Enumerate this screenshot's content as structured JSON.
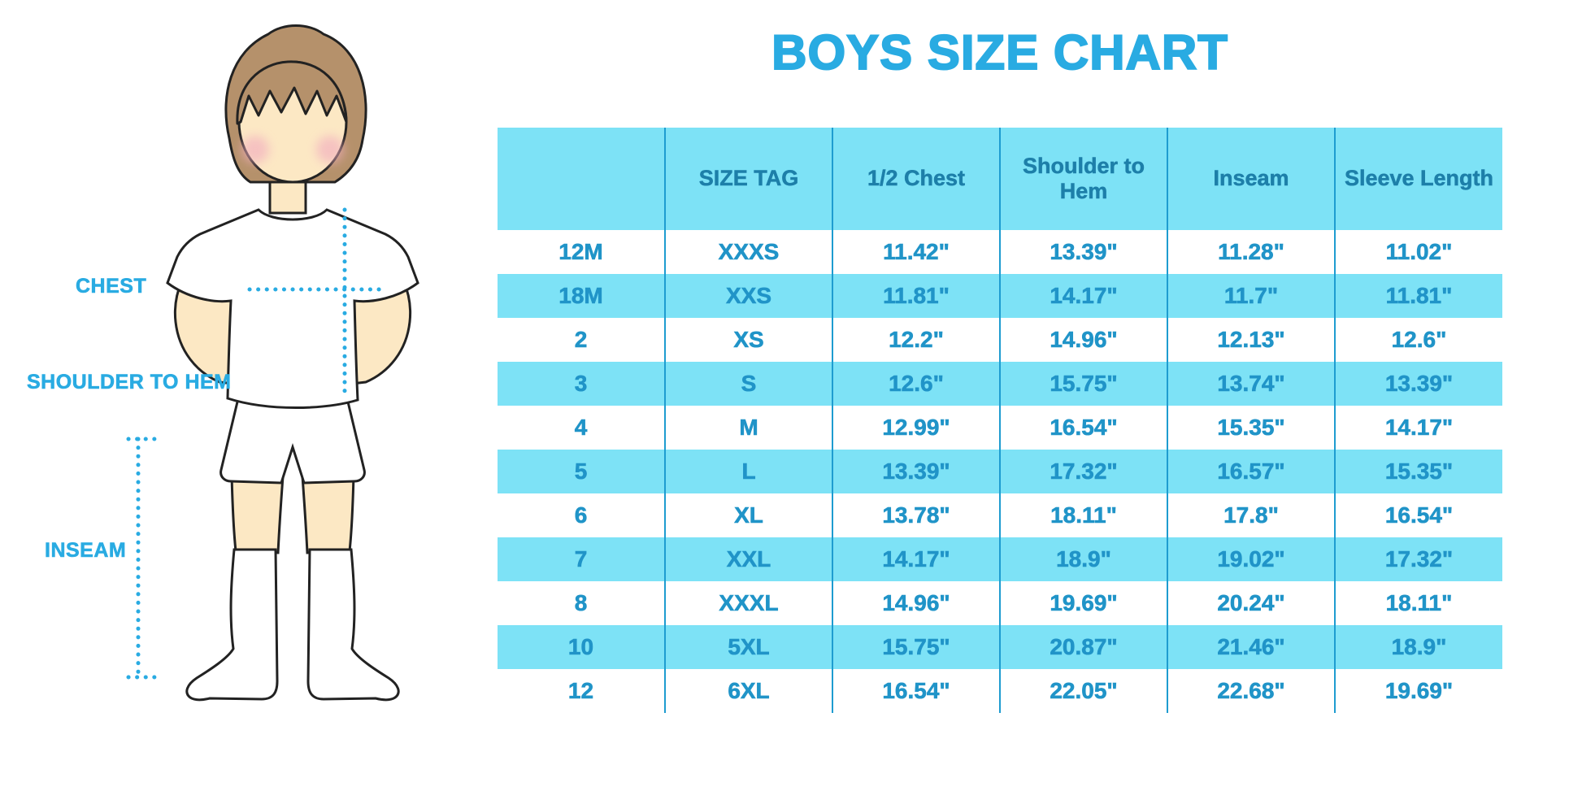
{
  "title": "BOYS SIZE CHART",
  "colors": {
    "accent_blue": "#29abe2",
    "row_highlight": "#7de2f6",
    "table_text": "#2094c8",
    "header_text": "#1d7fa9",
    "grid_line": "#1e9cd0",
    "skin": "#fce8c4",
    "hair": "#b5916b",
    "cheek": "#f2aebf"
  },
  "figure": {
    "labels": {
      "chest": "CHEST",
      "shoulder_to_hem": "SHOULDER TO HEM",
      "inseam": "INSEAM"
    }
  },
  "chart_data": {
    "type": "table",
    "title": "BOYS SIZE CHART",
    "columns": [
      "",
      "SIZE TAG",
      "1/2 Chest",
      "Shoulder to Hem",
      "Inseam",
      "Sleeve Length"
    ],
    "rows": [
      [
        "12M",
        "XXXS",
        "11.42\"",
        "13.39\"",
        "11.28\"",
        "11.02\""
      ],
      [
        "18M",
        "XXS",
        "11.81\"",
        "14.17\"",
        "11.7\"",
        "11.81\""
      ],
      [
        "2",
        "XS",
        "12.2\"",
        "14.96\"",
        "12.13\"",
        "12.6\""
      ],
      [
        "3",
        "S",
        "12.6\"",
        "15.75\"",
        "13.74\"",
        "13.39\""
      ],
      [
        "4",
        "M",
        "12.99\"",
        "16.54\"",
        "15.35\"",
        "14.17\""
      ],
      [
        "5",
        "L",
        "13.39\"",
        "17.32\"",
        "16.57\"",
        "15.35\""
      ],
      [
        "6",
        "XL",
        "13.78\"",
        "18.11\"",
        "17.8\"",
        "16.54\""
      ],
      [
        "7",
        "XXL",
        "14.17\"",
        "18.9\"",
        "19.02\"",
        "17.32\""
      ],
      [
        "8",
        "XXXL",
        "14.96\"",
        "19.69\"",
        "20.24\"",
        "18.11\""
      ],
      [
        "10",
        "5XL",
        "15.75\"",
        "20.87\"",
        "21.46\"",
        "18.9\""
      ],
      [
        "12",
        "6XL",
        "16.54\"",
        "22.05\"",
        "22.68\"",
        "19.69\""
      ]
    ],
    "zebra_striping": "alternating white and light blue rows starting with white",
    "measurement_unit": "inches"
  }
}
